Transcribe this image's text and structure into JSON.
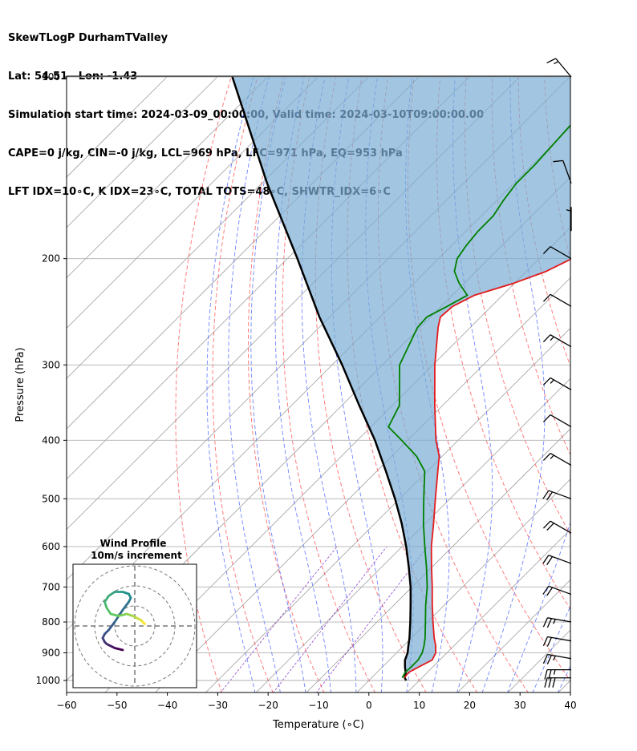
{
  "header": {
    "line1": "SkewTLogP DurhamTValley",
    "line2": "Lat: 54.51   Lon: -1.43",
    "line3": "Simulation start time: 2024-03-09_00:00:00, Valid time: 2024-03-10T09:00:00.00",
    "line4": "CAPE=0 j/kg, CIN=-0 j/kg, LCL=969 hPa, LFC=971 hPa, EQ=953 hPa",
    "line5": "LFT IDX=10∘C, K IDX=23∘C, TOTAL TOTS=48∘C, SHWTR_IDX=6∘C"
  },
  "chart_data": {
    "type": "skewt",
    "xlabel": "Temperature (∘C)",
    "ylabel": "Pressure (hPa)",
    "xlim": [
      -60,
      40
    ],
    "ylim": [
      1050,
      100
    ],
    "x_ticks": [
      "−60",
      "−50",
      "−40",
      "−30",
      "−20",
      "−10",
      "0",
      "10",
      "20",
      "30",
      "40"
    ],
    "x_tick_values": [
      -60,
      -50,
      -40,
      -30,
      -20,
      -10,
      0,
      10,
      20,
      30,
      40
    ],
    "y_ticks": [
      "100",
      "200",
      "300",
      "400",
      "500",
      "600",
      "700",
      "800",
      "900",
      "1000"
    ],
    "y_tick_values": [
      100,
      200,
      300,
      400,
      500,
      600,
      700,
      800,
      900,
      1000
    ],
    "grid": true,
    "colors": {
      "temperature": "#e31a1c",
      "dewpoint": "#008000",
      "parcel": "#000000",
      "cape_fill": "#7aaed4",
      "dry_adiabats": "#ff4040",
      "moist_adiabats": "#3050ff",
      "mixing_ratio": "#8030c0",
      "isotherms": "#999999"
    },
    "temperature": {
      "pressure": [
        990,
        970,
        950,
        925,
        900,
        875,
        850,
        800,
        750,
        700,
        650,
        600,
        550,
        500,
        450,
        425,
        400,
        350,
        300,
        260,
        250,
        240,
        230,
        220,
        210,
        200,
        190,
        180,
        170,
        160,
        150,
        140,
        130,
        120,
        110,
        100
      ],
      "values": [
        6.5,
        6.3,
        7.2,
        8.5,
        7.8,
        6.3,
        4.5,
        1.1,
        -2.4,
        -6.0,
        -10.0,
        -14.2,
        -18.3,
        -22.9,
        -27.9,
        -30.6,
        -34.4,
        -41.6,
        -49.6,
        -56.4,
        -58.0,
        -57.7,
        -55.6,
        -50.3,
        -46.1,
        -43.5,
        -43.5,
        -43.8,
        -44.2,
        -45.0,
        -46.1,
        -47.8,
        -49.1,
        -50.6,
        -52.5,
        -54.8
      ]
    },
    "dewpoint": {
      "pressure": [
        990,
        970,
        950,
        925,
        900,
        875,
        850,
        800,
        750,
        700,
        650,
        600,
        550,
        500,
        450,
        425,
        400,
        380,
        350,
        300,
        260,
        250,
        240,
        230,
        220,
        210,
        200,
        190,
        180,
        170,
        160,
        150,
        140,
        120,
        100
      ],
      "values": [
        6.1,
        5.6,
        5.7,
        5.7,
        5.1,
        4.0,
        2.7,
        -0.4,
        -3.7,
        -7.0,
        -11.0,
        -15.5,
        -20.3,
        -25.2,
        -30.5,
        -35.1,
        -41.2,
        -46.5,
        -48.6,
        -56.6,
        -60.5,
        -60.7,
        -58.8,
        -57.0,
        -60.9,
        -64.3,
        -66.3,
        -67.1,
        -67.6,
        -67.6,
        -68.7,
        -69.5,
        -69.5,
        -70.3,
        -70.7
      ]
    },
    "parcel": {
      "pressure": [
        1000,
        990,
        970,
        950,
        925,
        900,
        875,
        850,
        800,
        750,
        700,
        650,
        600,
        550,
        500,
        450,
        400,
        350,
        300,
        250,
        200,
        150,
        100
      ],
      "values": [
        7.4,
        6.6,
        5.7,
        4.5,
        3.1,
        2.2,
        0.9,
        -0.4,
        -3.4,
        -6.7,
        -10.3,
        -14.5,
        -19.2,
        -24.6,
        -30.9,
        -38.2,
        -46.5,
        -56.6,
        -68.0,
        -82.0,
        -98.0,
        -119.0,
        -147.0
      ]
    },
    "wind_barbs": [
      {
        "pressure": 100,
        "speed_kt": 15,
        "direction": 320
      },
      {
        "pressure": 150,
        "speed_kt": 10,
        "direction": 340
      },
      {
        "pressure": 180,
        "speed_kt": 5,
        "direction": 360
      },
      {
        "pressure": 200,
        "speed_kt": 10,
        "direction": 300
      },
      {
        "pressure": 240,
        "speed_kt": 10,
        "direction": 300
      },
      {
        "pressure": 280,
        "speed_kt": 15,
        "direction": 300
      },
      {
        "pressure": 330,
        "speed_kt": 15,
        "direction": 300
      },
      {
        "pressure": 380,
        "speed_kt": 10,
        "direction": 300
      },
      {
        "pressure": 440,
        "speed_kt": 15,
        "direction": 300
      },
      {
        "pressure": 500,
        "speed_kt": 20,
        "direction": 290
      },
      {
        "pressure": 570,
        "speed_kt": 20,
        "direction": 300
      },
      {
        "pressure": 640,
        "speed_kt": 20,
        "direction": 290
      },
      {
        "pressure": 720,
        "speed_kt": 20,
        "direction": 290
      },
      {
        "pressure": 800,
        "speed_kt": 25,
        "direction": 280
      },
      {
        "pressure": 860,
        "speed_kt": 20,
        "direction": 280
      },
      {
        "pressure": 920,
        "speed_kt": 25,
        "direction": 280
      },
      {
        "pressure": 960,
        "speed_kt": 25,
        "direction": 270
      },
      {
        "pressure": 990,
        "speed_kt": 30,
        "direction": 270
      }
    ],
    "hodograph": {
      "title_line1": "Wind Profile",
      "title_line2": "10m/s increment",
      "rings_ms": [
        10,
        20,
        30
      ],
      "u": [
        -6,
        -10,
        -12,
        -14,
        -15,
        -16,
        -15,
        -13,
        -10,
        -6,
        -3,
        -2,
        -3,
        -6,
        -10,
        -13,
        -15,
        -14,
        -12,
        -8,
        -4,
        -1,
        1,
        3,
        4,
        5
      ],
      "v": [
        -12,
        -11,
        -10,
        -9,
        -8,
        -6,
        -4,
        -2,
        2,
        8,
        12,
        14,
        16,
        17,
        17,
        15,
        12,
        9,
        6,
        5,
        6,
        5,
        4,
        3,
        2,
        1
      ]
    }
  }
}
